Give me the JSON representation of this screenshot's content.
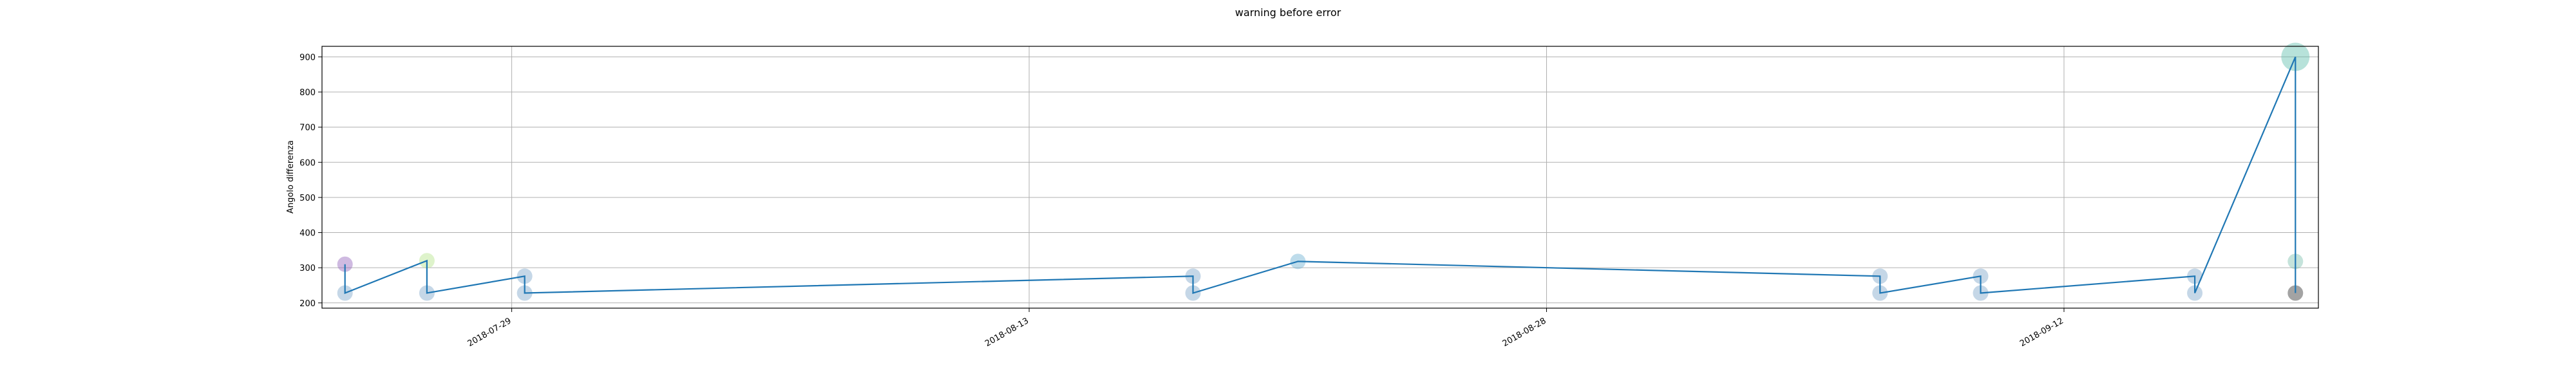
{
  "chart_data": {
    "type": "line",
    "title": "warning before error",
    "xlabel": "",
    "ylabel": "Angolo differenza",
    "x_type": "date",
    "xlim": [
      "2018-07-23T12:00",
      "2018-09-19T09:00"
    ],
    "ylim": [
      185,
      930
    ],
    "x_ticks": [
      "2018-07-29",
      "2018-08-13",
      "2018-08-28",
      "2018-09-12"
    ],
    "y_ticks": [
      200,
      300,
      400,
      500,
      600,
      700,
      800,
      900
    ],
    "grid": true,
    "line_color": "#1f77b4",
    "points": [
      {
        "x": "2018-07-24T04:00",
        "y": 310,
        "color": "#9467bd"
      },
      {
        "x": "2018-07-24T04:00",
        "y": 228,
        "color": "#7fa6c9"
      },
      {
        "x": "2018-07-26T13:00",
        "y": 320,
        "color": "#b5e48c"
      },
      {
        "x": "2018-07-26T13:00",
        "y": 228,
        "color": "#7fa6c9"
      },
      {
        "x": "2018-07-29T09:00",
        "y": 276,
        "color": "#7fa6c9"
      },
      {
        "x": "2018-07-29T09:00",
        "y": 228,
        "color": "#7fa6c9"
      },
      {
        "x": "2018-08-17T18:00",
        "y": 276,
        "color": "#7fa6c9"
      },
      {
        "x": "2018-08-17T18:00",
        "y": 228,
        "color": "#7fa6c9"
      },
      {
        "x": "2018-08-20T19:00",
        "y": 318,
        "color": "#6fb1d3"
      },
      {
        "x": "2018-09-06T16:00",
        "y": 276,
        "color": "#7fa6c9"
      },
      {
        "x": "2018-09-06T16:00",
        "y": 228,
        "color": "#7fa6c9"
      },
      {
        "x": "2018-09-09T14:00",
        "y": 276,
        "color": "#7fa6c9"
      },
      {
        "x": "2018-09-09T14:00",
        "y": 228,
        "color": "#7fa6c9"
      },
      {
        "x": "2018-09-15T19:00",
        "y": 276,
        "color": "#7fa6c9"
      },
      {
        "x": "2018-09-15T19:00",
        "y": 228,
        "color": "#7fa6c9"
      },
      {
        "x": "2018-09-18T17:00",
        "y": 900,
        "color": "#5fbfae"
      },
      {
        "x": "2018-09-18T17:00",
        "y": 318,
        "color": "#7fc1b0"
      },
      {
        "x": "2018-09-18T17:00",
        "y": 228,
        "color": "#333333"
      }
    ]
  }
}
